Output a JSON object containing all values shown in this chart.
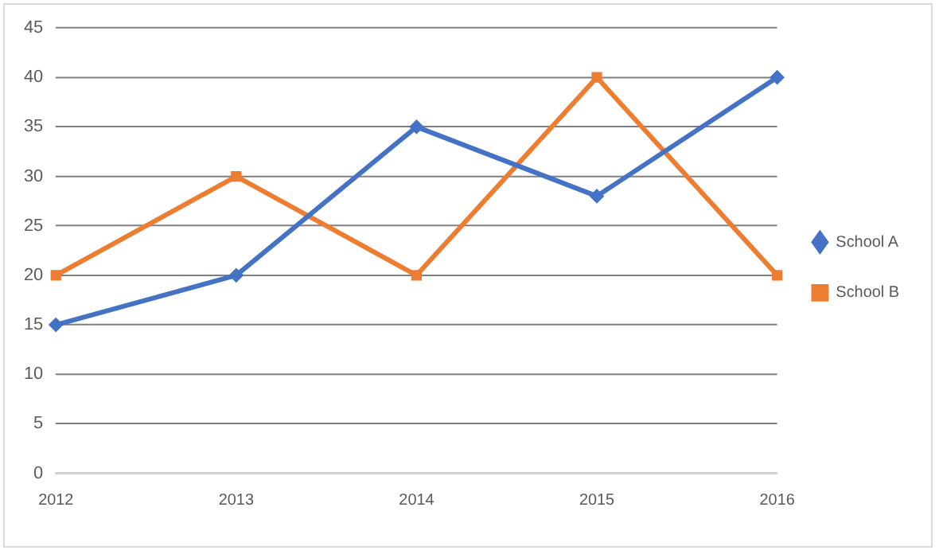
{
  "chart_data": {
    "type": "line",
    "categories": [
      "2012",
      "2013",
      "2014",
      "2015",
      "2016"
    ],
    "series": [
      {
        "name": "School A",
        "color": "#4472c4",
        "marker": "diamond",
        "values": [
          15,
          20,
          35,
          28,
          40
        ]
      },
      {
        "name": "School B",
        "color": "#ed7d31",
        "marker": "square",
        "values": [
          20,
          30,
          20,
          40,
          20
        ]
      }
    ],
    "ylim": [
      0,
      45
    ],
    "yticks": [
      0,
      5,
      10,
      15,
      20,
      25,
      30,
      35,
      40,
      45
    ],
    "grid": "y",
    "legend": "right",
    "line_style": "solid"
  }
}
